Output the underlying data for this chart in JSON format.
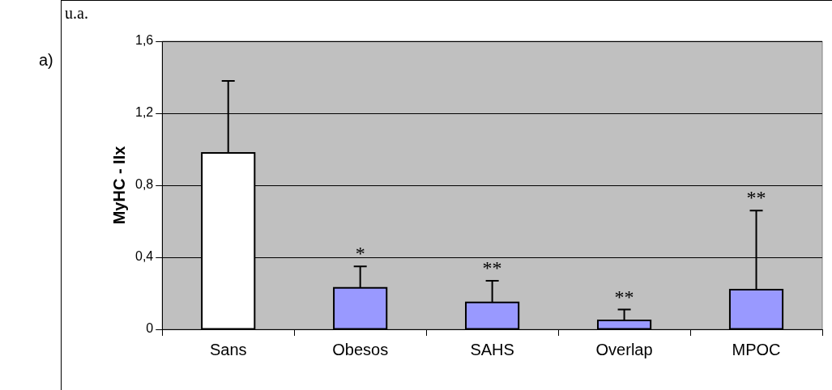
{
  "chart_data": {
    "type": "bar",
    "ylabel": "MyHC - IIx",
    "categories": [
      "Sans",
      "Obesos",
      "SAHS",
      "Overlap",
      "MPOC"
    ],
    "values": [
      0.98,
      0.23,
      0.15,
      0.05,
      0.22
    ],
    "colors": [
      "#ffffff",
      "#9999ff",
      "#9999ff",
      "#9999ff",
      "#9999ff"
    ],
    "errors": [
      [
        0.98,
        1.38
      ],
      [
        0.23,
        0.35
      ],
      [
        0.15,
        0.27
      ],
      [
        0.05,
        0.11
      ],
      [
        0.22,
        0.66
      ]
    ],
    "ylim": [
      0,
      1.6
    ],
    "yticks": [
      {
        "value": 0,
        "label": "0"
      },
      {
        "value": 0.4,
        "label": "0,4"
      },
      {
        "value": 0.8,
        "label": "0,8"
      },
      {
        "value": 1.2,
        "label": "1,2"
      },
      {
        "value": 1.6,
        "label": "1,6"
      }
    ],
    "grid": "y",
    "legend": false,
    "annotations": [
      "a)",
      "u.a.",
      {
        "text": "*",
        "x": "Obesos",
        "y": 0.35
      },
      {
        "text": "**",
        "x": "SAHS",
        "y": 0.27
      },
      {
        "text": "**",
        "x": "Overlap",
        "y": 0.11
      },
      {
        "text": "**",
        "x": "MPOC",
        "y": 0.66
      }
    ]
  }
}
